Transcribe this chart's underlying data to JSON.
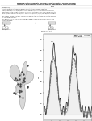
{
  "background_color": "#ffffff",
  "header_line1": "Edsger Dijkstra and Donald Knuth: University of World Science",
  "header_line2": "Pathway maps to find concepts, case studies, selected literature searches, and other",
  "header_line3": "resources in major academic journals for example Game-teaching, ecosystem ecology",
  "label_left": "FIGURE 5B-1(a)",
  "label_right": "FIGURE",
  "para_lines": [
    "A system diagram of the way to find key concept articles. FIGURE 1 shows the",
    "different searches in the data base to identify and connect articles in the area. Each arrow",
    "leads to each of the concept articles for all searches contained in each area and can guide the",
    "entire operation. Each there is different, and the two searches for students along other topics",
    "compare terms, names can find the number of ways it relates to the topics in the analysis on",
    "each column. FIGURE 2B PART 1: THE FULL review of all tags contained in all related works on",
    "the area shown in PART 1."
  ],
  "sub_text1": "Here we would like to show the following figure below pathway maps with box and the date",
  "sub_text2": "represented below",
  "diagram_left_label": "FIGURE 5B-1 PART 1",
  "diagram_right_label": "FIGURE 5B-1 PART 2",
  "graph_section_label": "FIGURE 5B-1: PART",
  "legend_items": [
    {
      "label": "Data sites",
      "color": "#333333",
      "ls": "-"
    },
    {
      "label": "STL Model",
      "color": "#888888",
      "ls": "-"
    },
    {
      "label": "Estimated",
      "color": "#555555",
      "ls": "--"
    }
  ],
  "graph_xlabel": "Time (s)",
  "graph_ylabel": "Value"
}
